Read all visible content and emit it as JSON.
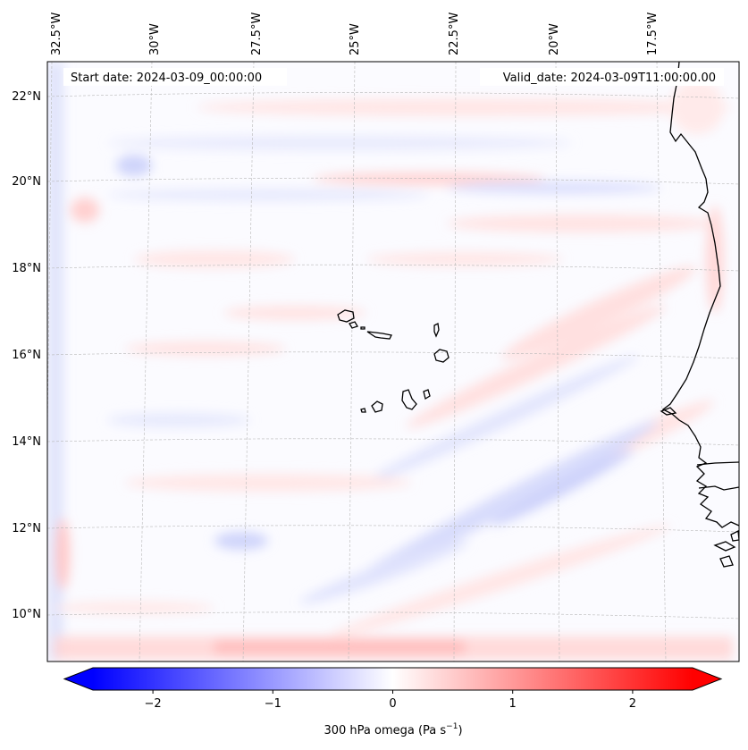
{
  "map": {
    "start_date": "Start date: 2024-03-09_00:00:00",
    "valid_date": "Valid_date: 2024-03-09T11:00:00.00",
    "lon_labels": [
      "32.5°W",
      "30°W",
      "27.5°W",
      "25°W",
      "22.5°W",
      "20°W",
      "17.5°W"
    ],
    "lat_labels": [
      "22°N",
      "20°N",
      "18°N",
      "16°N",
      "14°N",
      "12°N",
      "10°N"
    ]
  },
  "colorbar": {
    "ticks": [
      "−2",
      "−1",
      "0",
      "1",
      "2"
    ],
    "tick_values": [
      -2,
      -1,
      0,
      1,
      2
    ],
    "range": [
      -2.5,
      2.5
    ],
    "label": "300 hPa omega (Pa s",
    "label_unit_exp": "−1",
    "label_close": ")",
    "color_min": "#0000ff",
    "color_mid": "#ffffff",
    "color_max": "#ff0000"
  }
}
